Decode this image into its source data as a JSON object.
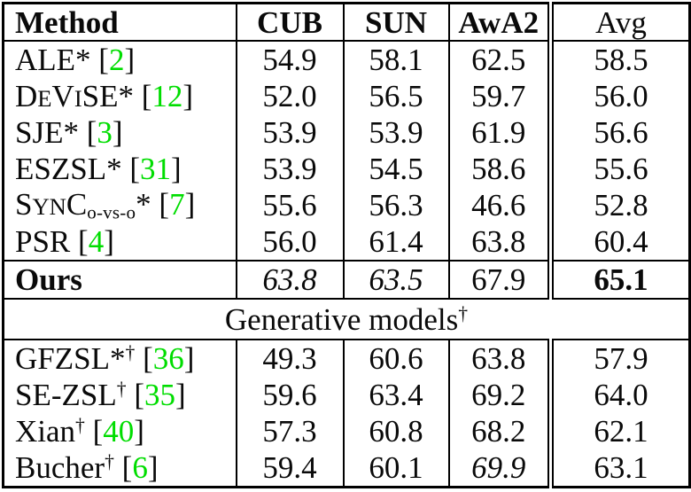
{
  "page": {
    "background_color": "#ffffff",
    "text_color": "#0a0a0a",
    "citation_color": "#00dd00"
  },
  "table": {
    "value_column_keys": [
      "cub",
      "sun",
      "awa2",
      "avg"
    ],
    "header": {
      "cells": [
        {
          "text": "Method",
          "bold": true
        },
        {
          "text": "CUB",
          "bold": true
        },
        {
          "text": "SUN",
          "bold": true
        },
        {
          "text": "AwA2",
          "bold": true
        },
        {
          "text": "Avg",
          "bold": false
        }
      ]
    },
    "sections": [
      {
        "name": "embedding-methods",
        "rows": [
          {
            "method": [
              {
                "t": "ALE* ["
              },
              {
                "t": "2",
                "s": "cite"
              },
              {
                "t": "]"
              }
            ],
            "values": [
              {
                "t": "54.9"
              },
              {
                "t": "58.1"
              },
              {
                "t": "62.5"
              },
              {
                "t": "58.5"
              }
            ]
          },
          {
            "method": [
              {
                "t": "D"
              },
              {
                "t": "E",
                "s": "sc"
              },
              {
                "t": "V"
              },
              {
                "t": "I",
                "s": "sc"
              },
              {
                "t": "SE* ["
              },
              {
                "t": "12",
                "s": "cite"
              },
              {
                "t": "]"
              }
            ],
            "values": [
              {
                "t": "52.0"
              },
              {
                "t": "56.5"
              },
              {
                "t": "59.7"
              },
              {
                "t": "56.0"
              }
            ]
          },
          {
            "method": [
              {
                "t": "SJE* ["
              },
              {
                "t": "3",
                "s": "cite"
              },
              {
                "t": "]"
              }
            ],
            "values": [
              {
                "t": "53.9"
              },
              {
                "t": "53.9"
              },
              {
                "t": "61.9"
              },
              {
                "t": "56.6"
              }
            ]
          },
          {
            "method": [
              {
                "t": "ESZSL* ["
              },
              {
                "t": "31",
                "s": "cite"
              },
              {
                "t": "]"
              }
            ],
            "values": [
              {
                "t": "53.9"
              },
              {
                "t": "54.5"
              },
              {
                "t": "58.6"
              },
              {
                "t": "55.6"
              }
            ]
          },
          {
            "method": [
              {
                "t": "S"
              },
              {
                "t": "YN",
                "s": "sc"
              },
              {
                "t": "C"
              },
              {
                "t": "o-vs-o",
                "s": "sub"
              },
              {
                "t": "* ["
              },
              {
                "t": "7",
                "s": "cite"
              },
              {
                "t": "]"
              }
            ],
            "values": [
              {
                "t": "55.6"
              },
              {
                "t": "56.3"
              },
              {
                "t": "46.6"
              },
              {
                "t": "52.8"
              }
            ]
          },
          {
            "method": [
              {
                "t": "PSR ["
              },
              {
                "t": "4",
                "s": "cite"
              },
              {
                "t": "]"
              }
            ],
            "values": [
              {
                "t": "56.0"
              },
              {
                "t": "61.4"
              },
              {
                "t": "63.8"
              },
              {
                "t": "60.4"
              }
            ]
          }
        ]
      },
      {
        "name": "ours",
        "rows": [
          {
            "method": [
              {
                "t": "Ours",
                "s": "bold"
              }
            ],
            "values": [
              {
                "t": "63.8",
                "s": "italic"
              },
              {
                "t": "63.5",
                "s": "italic"
              },
              {
                "t": "67.9"
              },
              {
                "t": "65.1",
                "s": "bold"
              }
            ]
          }
        ]
      },
      {
        "name": "generative-models",
        "span_row": {
          "segments": [
            {
              "t": "Generative models"
            },
            {
              "t": "†",
              "s": "sup"
            }
          ]
        },
        "rows": [
          {
            "method": [
              {
                "t": "GFZSL*"
              },
              {
                "t": "†",
                "s": "sup"
              },
              {
                "t": " ["
              },
              {
                "t": "36",
                "s": "cite"
              },
              {
                "t": "]"
              }
            ],
            "values": [
              {
                "t": "49.3"
              },
              {
                "t": "60.6"
              },
              {
                "t": "63.8"
              },
              {
                "t": "57.9"
              }
            ]
          },
          {
            "method": [
              {
                "t": "SE-ZSL"
              },
              {
                "t": "†",
                "s": "sup"
              },
              {
                "t": " ["
              },
              {
                "t": "35",
                "s": "cite"
              },
              {
                "t": "]"
              }
            ],
            "values": [
              {
                "t": "59.6"
              },
              {
                "t": "63.4"
              },
              {
                "t": "69.2"
              },
              {
                "t": "64.0"
              }
            ]
          },
          {
            "method": [
              {
                "t": "Xian"
              },
              {
                "t": "†",
                "s": "sup"
              },
              {
                "t": " ["
              },
              {
                "t": "40",
                "s": "cite"
              },
              {
                "t": "]"
              }
            ],
            "values": [
              {
                "t": "57.3"
              },
              {
                "t": "60.8"
              },
              {
                "t": "68.2"
              },
              {
                "t": "62.1"
              }
            ]
          },
          {
            "method": [
              {
                "t": "Bucher"
              },
              {
                "t": "†",
                "s": "sup"
              },
              {
                "t": " ["
              },
              {
                "t": "6",
                "s": "cite"
              },
              {
                "t": "]"
              }
            ],
            "values": [
              {
                "t": "59.4"
              },
              {
                "t": "60.1"
              },
              {
                "t": "69.9",
                "s": "italic"
              },
              {
                "t": "63.1"
              }
            ]
          }
        ]
      }
    ]
  }
}
